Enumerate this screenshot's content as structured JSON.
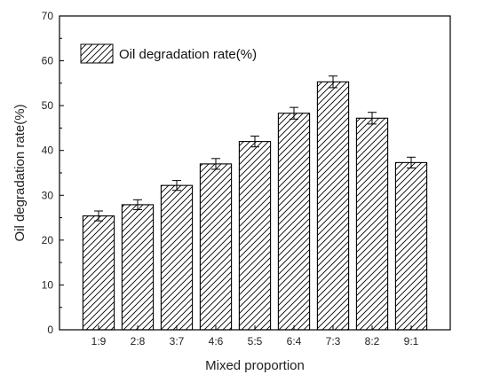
{
  "chart_data": {
    "type": "bar",
    "categories": [
      "1:9",
      "2:8",
      "3:7",
      "4:6",
      "5:5",
      "6:4",
      "7:3",
      "8:2",
      "9:1"
    ],
    "series": [
      {
        "name": "Oil degradation rate(%)",
        "values": [
          25.4,
          27.9,
          32.2,
          37.0,
          42.0,
          48.3,
          55.3,
          47.2,
          37.3
        ],
        "errors": [
          1.1,
          1.1,
          1.1,
          1.2,
          1.2,
          1.3,
          1.3,
          1.3,
          1.2
        ]
      }
    ],
    "xlabel": "Mixed proportion",
    "ylabel": "Oil degradation rate(%)",
    "ylim": [
      0,
      70
    ],
    "yticks": [
      0,
      10,
      20,
      30,
      40,
      50,
      60,
      70
    ],
    "bar_fill": "hatched",
    "bar_color": "#000000",
    "background": "#ffffff",
    "legend_position": "top-left",
    "grid": false
  }
}
